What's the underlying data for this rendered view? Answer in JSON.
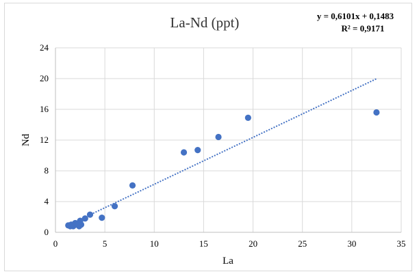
{
  "chart_data": {
    "type": "scatter",
    "title": "La-Nd (ppt)",
    "xlabel": "La",
    "ylabel": "Nd",
    "xlim": [
      0,
      35
    ],
    "ylim": [
      0,
      24
    ],
    "x_ticks": [
      "0",
      "5",
      "10",
      "15",
      "20",
      "25",
      "30",
      "35"
    ],
    "y_ticks": [
      "0",
      "4",
      "8",
      "12",
      "16",
      "20",
      "24"
    ],
    "grid": true,
    "legend": "none",
    "colors": {
      "marker": "#4472c4",
      "trendline": "#4472c4",
      "grid": "#d9d9d9",
      "axis": "#bfbfbf"
    },
    "points": [
      {
        "x": 1.3,
        "y": 0.9
      },
      {
        "x": 1.5,
        "y": 0.8
      },
      {
        "x": 1.6,
        "y": 1.0
      },
      {
        "x": 1.8,
        "y": 0.8
      },
      {
        "x": 2.0,
        "y": 1.2
      },
      {
        "x": 2.2,
        "y": 1.0
      },
      {
        "x": 2.4,
        "y": 0.8
      },
      {
        "x": 2.5,
        "y": 1.5
      },
      {
        "x": 2.6,
        "y": 1.0
      },
      {
        "x": 3.0,
        "y": 1.8
      },
      {
        "x": 3.5,
        "y": 2.3
      },
      {
        "x": 4.7,
        "y": 1.9
      },
      {
        "x": 6.0,
        "y": 3.4
      },
      {
        "x": 7.8,
        "y": 6.1
      },
      {
        "x": 13.0,
        "y": 10.4
      },
      {
        "x": 14.4,
        "y": 10.7
      },
      {
        "x": 16.5,
        "y": 12.4
      },
      {
        "x": 19.5,
        "y": 14.9
      },
      {
        "x": 32.5,
        "y": 15.6
      }
    ],
    "trendline": {
      "type": "linear",
      "slope": 0.6101,
      "intercept": 0.1483,
      "x_range": [
        1.3,
        32.5
      ],
      "equation": "y = 0,6101x + 0,1483",
      "r2_label": "R² = 0,9171"
    }
  }
}
